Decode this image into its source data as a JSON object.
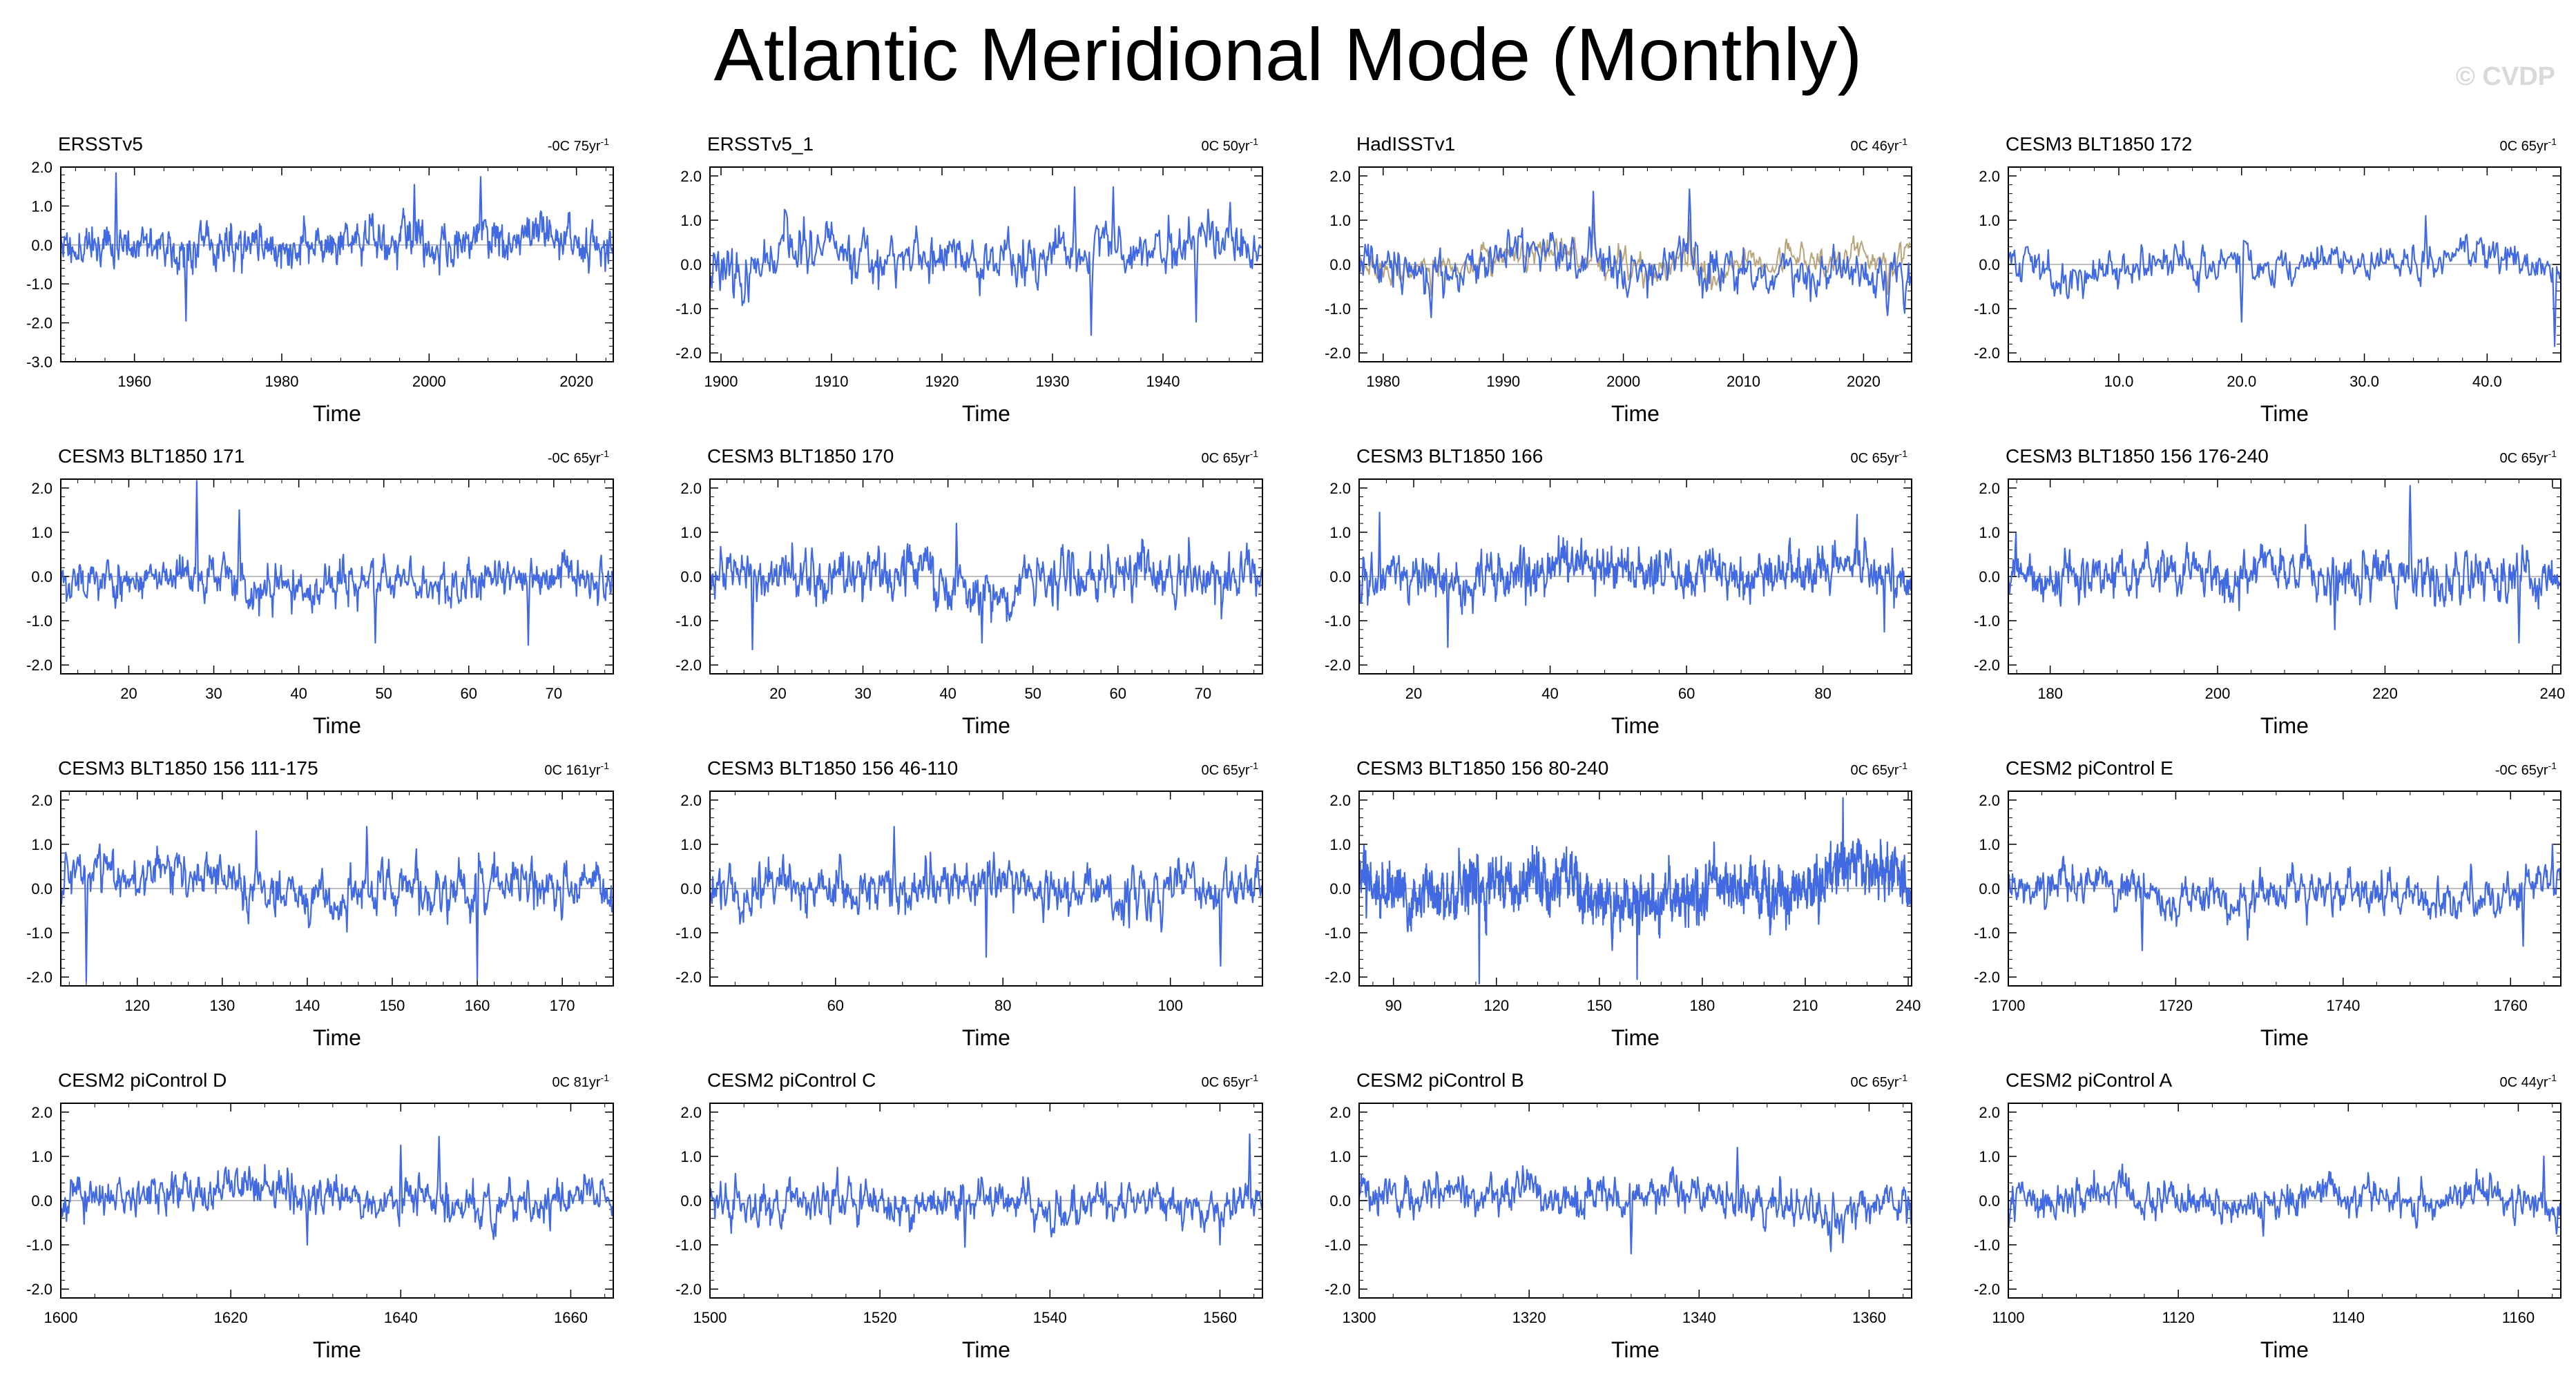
{
  "page": {
    "title": "Atlantic Meridional Mode (Monthly)",
    "watermark": "© CVDP"
  },
  "colors": {
    "series": "#4169e1",
    "series_overlay": "#b8a47a",
    "frame": "#000000",
    "zero_line": "#aaaaaa"
  },
  "chart_data": [
    {
      "type": "line",
      "title": "ERSSTv5",
      "trend": "-0C 75yr",
      "xlabel": "Time",
      "xlim": [
        1950,
        2025
      ],
      "xticks": [
        1960,
        1980,
        2000,
        2020
      ],
      "ylim": [
        -3,
        2
      ],
      "yticks": [
        -3,
        -2,
        -1,
        0,
        1,
        2
      ],
      "ytick_labels": [
        "-3.0",
        "-2.0",
        "-1.0",
        "0.0",
        "1.0",
        "2.0"
      ],
      "seed": 11,
      "sigma": 0.55,
      "extremes": [
        [
          1957.5,
          1.85
        ],
        [
          1967,
          -1.95
        ],
        [
          2007,
          1.75
        ],
        [
          1998,
          1.55
        ]
      ]
    },
    {
      "type": "line",
      "title": "ERSSTv5_1",
      "trend": "0C 50yr",
      "xlabel": "Time",
      "xlim": [
        1899,
        1949
      ],
      "xticks": [
        1900,
        1910,
        1920,
        1930,
        1940
      ],
      "xtick_labels": [
        "1900",
        "1910",
        "1920",
        "1930",
        "1940"
      ],
      "ylim": [
        -2.2,
        2.2
      ],
      "yticks": [
        -2,
        -1,
        0,
        1,
        2
      ],
      "ytick_labels": [
        "-2.0",
        "-1.0",
        "0.0",
        "1.0",
        "2.0"
      ],
      "seed": 23,
      "sigma": 0.6,
      "extremes": [
        [
          1932,
          1.75
        ],
        [
          1935.5,
          1.75
        ],
        [
          1933.5,
          -1.6
        ],
        [
          1943,
          -1.3
        ]
      ]
    },
    {
      "type": "line",
      "title": "HadISSTv1",
      "trend": "0C 46yr",
      "xlabel": "Time",
      "xlim": [
        1978,
        2024
      ],
      "xticks": [
        1980,
        1990,
        2000,
        2010,
        2020
      ],
      "ylim": [
        -2.2,
        2.2
      ],
      "yticks": [
        -2,
        -1,
        0,
        1,
        2
      ],
      "ytick_labels": [
        "-2.0",
        "-1.0",
        "0.0",
        "1.0",
        "2.0"
      ],
      "seed": 37,
      "sigma": 0.55,
      "overlay": true,
      "extremes": [
        [
          1997.5,
          1.65
        ],
        [
          2005.5,
          1.7
        ],
        [
          1984,
          -1.2
        ],
        [
          2022,
          -1.15
        ]
      ]
    },
    {
      "type": "line",
      "title": "CESM3 BLT1850 172",
      "trend": "0C 65yr",
      "xlabel": "Time",
      "xlim": [
        1,
        46
      ],
      "xticks": [
        10,
        20,
        30,
        40
      ],
      "xtick_labels": [
        "10.0",
        "20.0",
        "30.0",
        "40.0"
      ],
      "ylim": [
        -2.2,
        2.2
      ],
      "yticks": [
        -2,
        -1,
        0,
        1,
        2
      ],
      "ytick_labels": [
        "-2.0",
        "-1.0",
        "0.0",
        "1.0",
        "2.0"
      ],
      "seed": 41,
      "sigma": 0.45,
      "extremes": [
        [
          35,
          1.1
        ],
        [
          45.5,
          -1.85
        ],
        [
          20,
          -1.3
        ]
      ]
    },
    {
      "type": "line",
      "title": "CESM3 BLT1850 171",
      "trend": "-0C 65yr",
      "xlabel": "Time",
      "xlim": [
        12,
        77
      ],
      "xticks": [
        20,
        30,
        40,
        50,
        60,
        70
      ],
      "ylim": [
        -2.2,
        2.2
      ],
      "yticks": [
        -2,
        -1,
        0,
        1,
        2
      ],
      "ytick_labels": [
        "-2.0",
        "-1.0",
        "0.0",
        "1.0",
        "2.0"
      ],
      "seed": 53,
      "sigma": 0.5,
      "extremes": [
        [
          28,
          2.15
        ],
        [
          33,
          1.5
        ],
        [
          49,
          -1.5
        ],
        [
          67,
          -1.55
        ]
      ]
    },
    {
      "type": "line",
      "title": "CESM3 BLT1850 170",
      "trend": "0C 65yr",
      "xlabel": "Time",
      "xlim": [
        12,
        77
      ],
      "xticks": [
        20,
        30,
        40,
        50,
        60,
        70
      ],
      "ylim": [
        -2.2,
        2.2
      ],
      "yticks": [
        -2,
        -1,
        0,
        1,
        2
      ],
      "ytick_labels": [
        "-2.0",
        "-1.0",
        "0.0",
        "1.0",
        "2.0"
      ],
      "seed": 61,
      "sigma": 0.6,
      "extremes": [
        [
          17,
          -1.65
        ],
        [
          44,
          -1.5
        ],
        [
          41,
          1.2
        ]
      ]
    },
    {
      "type": "line",
      "title": "CESM3 BLT1850 166",
      "trend": "0C 65yr",
      "xlabel": "Time",
      "xlim": [
        12,
        93
      ],
      "xticks": [
        20,
        40,
        60,
        80
      ],
      "ylim": [
        -2.2,
        2.2
      ],
      "yticks": [
        -2,
        -1,
        0,
        1,
        2
      ],
      "ytick_labels": [
        "-2.0",
        "-1.0",
        "0.0",
        "1.0",
        "2.0"
      ],
      "seed": 71,
      "sigma": 0.55,
      "extremes": [
        [
          15,
          1.45
        ],
        [
          25,
          -1.6
        ],
        [
          85,
          1.4
        ],
        [
          89,
          -1.25
        ]
      ]
    },
    {
      "type": "line",
      "title": "CESM3 BLT1850 156 176-240",
      "trend": "0C 65yr",
      "xlabel": "Time",
      "xlim": [
        175,
        241
      ],
      "xticks": [
        180,
        200,
        220,
        240
      ],
      "ylim": [
        -2.2,
        2.2
      ],
      "yticks": [
        -2,
        -1,
        0,
        1,
        2
      ],
      "ytick_labels": [
        "-2.0",
        "-1.0",
        "0.0",
        "1.0",
        "2.0"
      ],
      "seed": 83,
      "sigma": 0.55,
      "extremes": [
        [
          223,
          2.05
        ],
        [
          236,
          -1.5
        ],
        [
          214,
          -1.2
        ]
      ]
    },
    {
      "type": "line",
      "title": "CESM3 BLT1850 156 111-175",
      "trend": "0C 161yr",
      "xlabel": "Time",
      "xlim": [
        111,
        176
      ],
      "xticks": [
        120,
        130,
        140,
        150,
        160,
        170
      ],
      "ylim": [
        -2.2,
        2.2
      ],
      "yticks": [
        -2,
        -1,
        0,
        1,
        2
      ],
      "ytick_labels": [
        "-2.0",
        "-1.0",
        "0.0",
        "1.0",
        "2.0"
      ],
      "seed": 97,
      "sigma": 0.55,
      "extremes": [
        [
          114,
          -2.1
        ],
        [
          160,
          -2.05
        ],
        [
          147,
          1.4
        ],
        [
          134,
          1.3
        ]
      ]
    },
    {
      "type": "line",
      "title": "CESM3 BLT1850 156 46-110",
      "trend": "0C 65yr",
      "xlabel": "Time",
      "xlim": [
        45,
        111
      ],
      "xticks": [
        60,
        80,
        100
      ],
      "ylim": [
        -2.2,
        2.2
      ],
      "yticks": [
        -2,
        -1,
        0,
        1,
        2
      ],
      "ytick_labels": [
        "-2.0",
        "-1.0",
        "0.0",
        "1.0",
        "2.0"
      ],
      "seed": 103,
      "sigma": 0.55,
      "extremes": [
        [
          67,
          1.4
        ],
        [
          106,
          -1.75
        ],
        [
          78,
          -1.55
        ]
      ]
    },
    {
      "type": "line",
      "title": "CESM3 BLT1850 156 80-240",
      "trend": "0C 65yr",
      "xlabel": "Time",
      "xlim": [
        80,
        241
      ],
      "xticks": [
        90,
        120,
        150,
        180,
        210,
        240
      ],
      "ylim": [
        -2.2,
        2.2
      ],
      "yticks": [
        -2,
        -1,
        0,
        1,
        2
      ],
      "ytick_labels": [
        "-2.0",
        "-1.0",
        "0.0",
        "1.0",
        "2.0"
      ],
      "seed": 113,
      "sigma": 0.6,
      "extremes": [
        [
          115,
          -2.2
        ],
        [
          161,
          -2.05
        ],
        [
          221,
          2.05
        ]
      ]
    },
    {
      "type": "line",
      "title": "CESM2 piControl E",
      "trend": "-0C 65yr",
      "xlabel": "Time",
      "xlim": [
        1700,
        1766
      ],
      "xticks": [
        1700,
        1720,
        1740,
        1760
      ],
      "ylim": [
        -2.2,
        2.2
      ],
      "yticks": [
        -2,
        -1,
        0,
        1,
        2
      ],
      "ytick_labels": [
        "-2.0",
        "-1.0",
        "0.0",
        "1.0",
        "2.0"
      ],
      "seed": 127,
      "sigma": 0.45,
      "extremes": [
        [
          1716,
          -1.4
        ],
        [
          1761.5,
          -1.3
        ],
        [
          1765,
          1.0
        ]
      ]
    },
    {
      "type": "line",
      "title": "CESM2 piControl D",
      "trend": "0C 81yr",
      "xlabel": "Time",
      "xlim": [
        1600,
        1665
      ],
      "xticks": [
        1600,
        1620,
        1640,
        1660
      ],
      "ylim": [
        -2.2,
        2.2
      ],
      "yticks": [
        -2,
        -1,
        0,
        1,
        2
      ],
      "ytick_labels": [
        "-2.0",
        "-1.0",
        "0.0",
        "1.0",
        "2.0"
      ],
      "seed": 131,
      "sigma": 0.45,
      "extremes": [
        [
          1644.5,
          1.45
        ],
        [
          1640,
          1.25
        ],
        [
          1629,
          -1.0
        ]
      ]
    },
    {
      "type": "line",
      "title": "CESM2 piControl C",
      "trend": "0C 65yr",
      "xlabel": "Time",
      "xlim": [
        1500,
        1565
      ],
      "xticks": [
        1500,
        1520,
        1540,
        1560
      ],
      "ylim": [
        -2.2,
        2.2
      ],
      "yticks": [
        -2,
        -1,
        0,
        1,
        2
      ],
      "ytick_labels": [
        "-2.0",
        "-1.0",
        "0.0",
        "1.0",
        "2.0"
      ],
      "seed": 139,
      "sigma": 0.45,
      "extremes": [
        [
          1563.5,
          1.5
        ],
        [
          1530,
          -1.05
        ],
        [
          1560,
          -1.0
        ]
      ]
    },
    {
      "type": "line",
      "title": "CESM2 piControl B",
      "trend": "0C 65yr",
      "xlabel": "Time",
      "xlim": [
        1300,
        1365
      ],
      "xticks": [
        1300,
        1320,
        1340,
        1360
      ],
      "ylim": [
        -2.2,
        2.2
      ],
      "yticks": [
        -2,
        -1,
        0,
        1,
        2
      ],
      "ytick_labels": [
        "-2.0",
        "-1.0",
        "0.0",
        "1.0",
        "2.0"
      ],
      "seed": 149,
      "sigma": 0.45,
      "extremes": [
        [
          1344.5,
          1.2
        ],
        [
          1332,
          -1.2
        ],
        [
          1355.5,
          -1.15
        ]
      ]
    },
    {
      "type": "line",
      "title": "CESM2 piControl A",
      "trend": "0C 44yr",
      "xlabel": "Time",
      "xlim": [
        1100,
        1165
      ],
      "xticks": [
        1100,
        1120,
        1140,
        1160
      ],
      "ylim": [
        -2.2,
        2.2
      ],
      "yticks": [
        -2,
        -1,
        0,
        1,
        2
      ],
      "ytick_labels": [
        "-2.0",
        "-1.0",
        "0.0",
        "1.0",
        "2.0"
      ],
      "seed": 157,
      "sigma": 0.4,
      "extremes": [
        [
          1163,
          1.0
        ],
        [
          1164.5,
          -0.75
        ],
        [
          1130,
          -0.8
        ]
      ]
    }
  ]
}
